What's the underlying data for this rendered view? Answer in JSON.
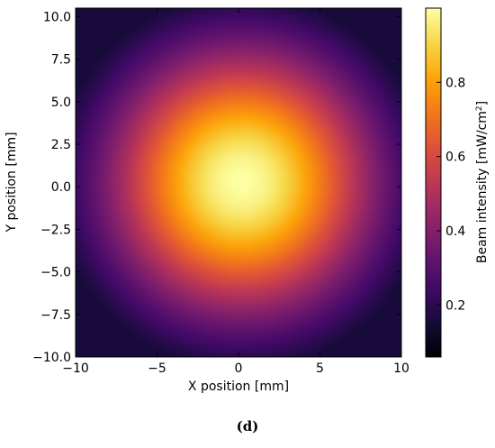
{
  "chart_data": {
    "type": "heatmap",
    "title": "",
    "xlabel": "X position [mm]",
    "ylabel": "Y position [mm]",
    "xlim": [
      -10,
      10
    ],
    "ylim": [
      -10,
      10.5
    ],
    "x_ticks": [
      -10,
      -5,
      0,
      5,
      10
    ],
    "x_tick_labels": [
      "−10",
      "−5",
      "0",
      "5",
      "10"
    ],
    "y_ticks": [
      10.0,
      7.5,
      5.0,
      2.5,
      0.0,
      -2.5,
      -5.0,
      -7.5,
      -10.0
    ],
    "y_tick_labels": [
      "10.0",
      "7.5",
      "5.0",
      "2.5",
      "0.0",
      "−2.5",
      "−5.0",
      "−7.5",
      "−10.0"
    ],
    "colormap": "inferno",
    "field": {
      "model": "gaussian",
      "center": [
        0.2,
        0.3
      ],
      "peak": 1.0,
      "sigma_mm": 6.0
    },
    "colorbar": {
      "label_prefix": "Beam intensity [mW/cm",
      "label_sup": "2",
      "label_suffix": "]",
      "range": [
        0.06,
        1.0
      ],
      "ticks": [
        0.2,
        0.4,
        0.6,
        0.8
      ],
      "tick_labels": [
        "0.2",
        "0.4",
        "0.6",
        "0.8"
      ]
    }
  },
  "panel_label": "(d)"
}
